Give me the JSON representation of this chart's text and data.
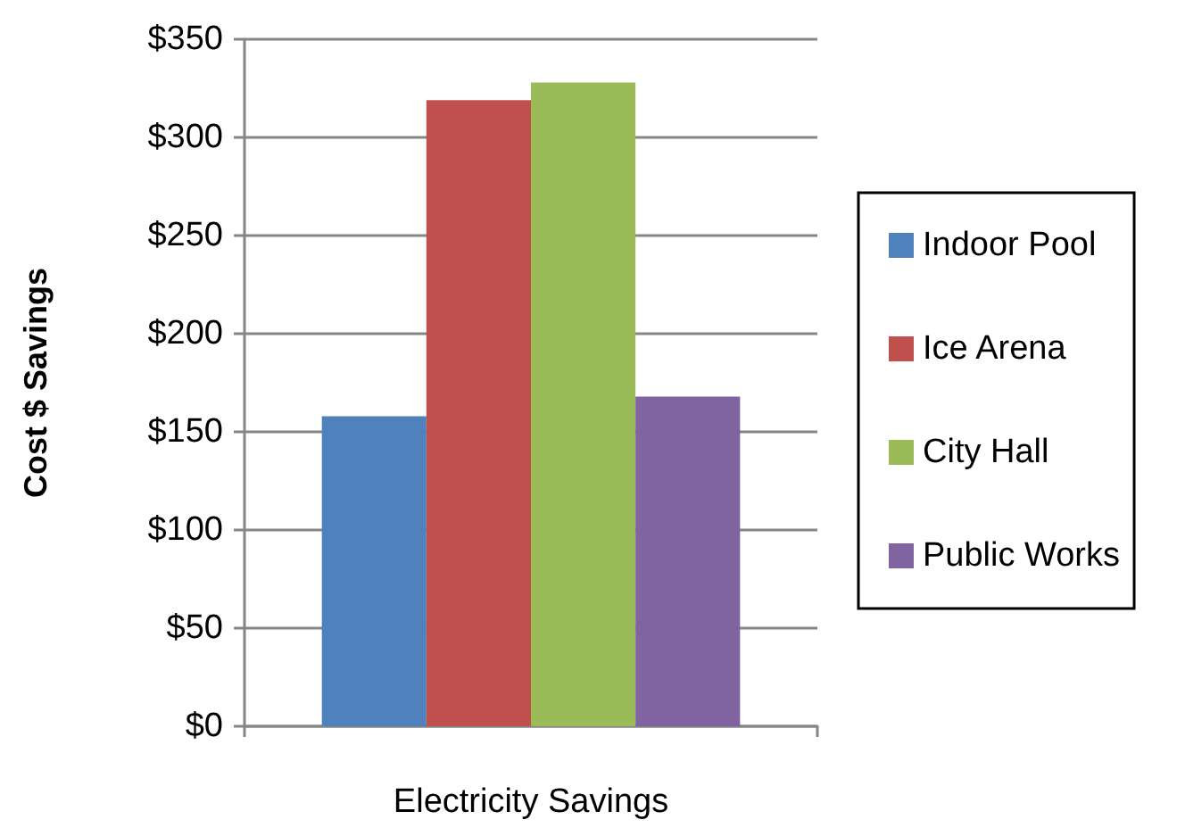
{
  "chart_data": {
    "type": "bar",
    "xlabel": "Electricity Savings",
    "ylabel": "Cost $ Savings",
    "categories": [
      null
    ],
    "series": [
      {
        "name": "Indoor Pool",
        "color": "#4f81bd",
        "values": [
          158
        ]
      },
      {
        "name": "Ice Arena",
        "color": "#c0504d",
        "values": [
          319
        ]
      },
      {
        "name": "City Hall",
        "color": "#9bbb59",
        "values": [
          328
        ]
      },
      {
        "name": "Public Works",
        "color": "#8064a2",
        "values": [
          168
        ]
      }
    ],
    "ylim": [
      0,
      350
    ],
    "yticks": [
      {
        "value": 0,
        "label": "$0"
      },
      {
        "value": 50,
        "label": "$50"
      },
      {
        "value": 100,
        "label": "$100"
      },
      {
        "value": 150,
        "label": "$150"
      },
      {
        "value": 200,
        "label": "$200"
      },
      {
        "value": 250,
        "label": "$250"
      },
      {
        "value": 300,
        "label": "$300"
      },
      {
        "value": 350,
        "label": "$350"
      }
    ],
    "grid": "y",
    "legend": "right"
  }
}
